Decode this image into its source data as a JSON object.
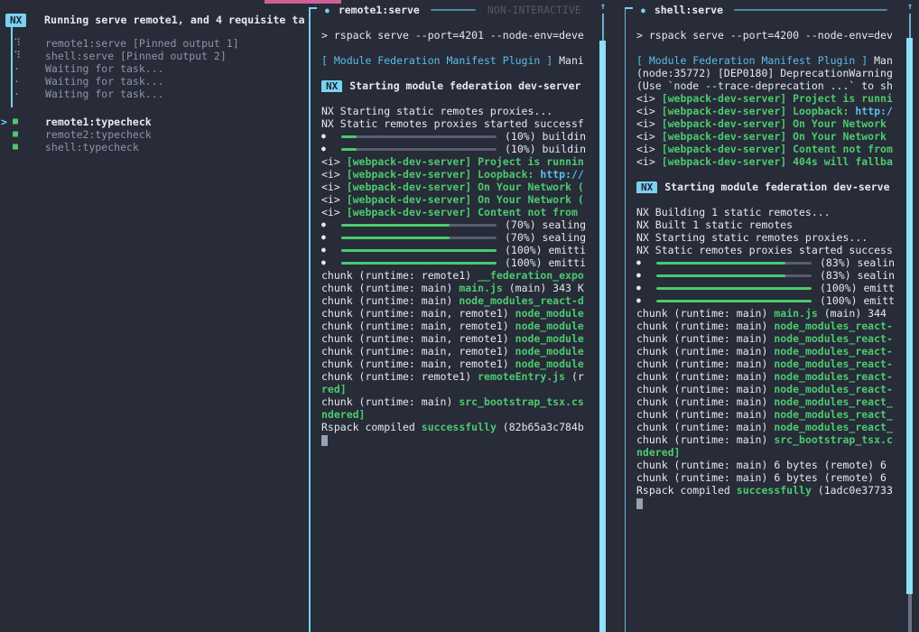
{
  "colors": {
    "background": "#282B38",
    "accent_cyan": "#79D2F0",
    "accent_pink": "#CE6096",
    "success_green": "#4ACB6E",
    "text_white": "#E7E9EF",
    "text_gray": "#8F95A8",
    "text_dim": "#525869",
    "link_cyan": "#58BEEA",
    "bar_track_gray": "#585E70",
    "scroll_thumb": "#8FE0F8",
    "badge_text": "#1E2230",
    "cursor_gray": "#99A0AF",
    "head_rule": "#4E87A6"
  },
  "icons": {
    "nx_badge": "NX",
    "running_dot": "●",
    "scroll_up_arrow": "↑",
    "spinner": "⠹",
    "waiting_dot": "·",
    "task_square": "■",
    "active_caret": ">",
    "progress_dot": "●"
  },
  "left_panel": {
    "badge": "NX",
    "title": "Running serve remote1, and 4 requisite ta",
    "rows": [
      {
        "icon": "spinner",
        "label": "remote1:serve [Pinned output 1]",
        "state": "pinned"
      },
      {
        "icon": "spinner",
        "label": "shell:serve [Pinned output 2]",
        "state": "pinned"
      },
      {
        "icon": "waiting_dot",
        "label": "Waiting for task...",
        "state": "waiting"
      },
      {
        "icon": "waiting_dot",
        "label": "Waiting for task...",
        "state": "waiting"
      },
      {
        "icon": "waiting_dot",
        "label": "Waiting for task...",
        "state": "waiting"
      },
      {
        "icon": "task_square",
        "label": "remote1:typecheck",
        "state": "success",
        "selected": true
      },
      {
        "icon": "task_square",
        "label": "remote2:typecheck",
        "state": "success"
      },
      {
        "icon": "task_square",
        "label": "shell:typecheck",
        "state": "success"
      }
    ]
  },
  "terminals": [
    {
      "title": "remote1:serve",
      "mode_label": "NON-INTERACTIVE",
      "lines": [
        {
          "t": "text",
          "segs": [
            [
              "> rspack serve --port=4201 --node-env=deve",
              "w"
            ]
          ]
        },
        {
          "t": "blank"
        },
        {
          "t": "text",
          "segs": [
            [
              "[ Module Federation Manifest Plugin ]",
              "cy"
            ],
            [
              " Mani",
              "w"
            ]
          ]
        },
        {
          "t": "blank"
        },
        {
          "t": "badge",
          "text": "Starting module federation dev-server"
        },
        {
          "t": "blank"
        },
        {
          "t": "text",
          "segs": [
            [
              "NX Starting static remotes proxies...",
              "w"
            ]
          ]
        },
        {
          "t": "text",
          "segs": [
            [
              "NX Static remotes proxies started successf",
              "w"
            ]
          ]
        },
        {
          "t": "bar",
          "pct": 10,
          "label": "(10%) buildin"
        },
        {
          "t": "bar",
          "pct": 10,
          "label": "(10%) buildin"
        },
        {
          "t": "text",
          "segs": [
            [
              "<i> ",
              "w"
            ],
            [
              "[webpack-dev-server] Project is runnin",
              "gn"
            ]
          ]
        },
        {
          "t": "text",
          "segs": [
            [
              "<i> ",
              "w"
            ],
            [
              "[webpack-dev-server] Loopback: ",
              "gn"
            ],
            [
              "http://",
              "cyb"
            ]
          ]
        },
        {
          "t": "text",
          "segs": [
            [
              "<i> ",
              "w"
            ],
            [
              "[webpack-dev-server] On Your Network (",
              "gn"
            ]
          ]
        },
        {
          "t": "text",
          "segs": [
            [
              "<i> ",
              "w"
            ],
            [
              "[webpack-dev-server] On Your Network (",
              "gn"
            ]
          ]
        },
        {
          "t": "text",
          "segs": [
            [
              "<i> ",
              "w"
            ],
            [
              "[webpack-dev-server] Content not from",
              "gn"
            ]
          ]
        },
        {
          "t": "bar",
          "pct": 70,
          "label": "(70%) sealing"
        },
        {
          "t": "bar",
          "pct": 70,
          "label": "(70%) sealing"
        },
        {
          "t": "bar",
          "pct": 100,
          "label": "(100%) emitti"
        },
        {
          "t": "bar",
          "pct": 100,
          "label": "(100%) emitti"
        },
        {
          "t": "text",
          "segs": [
            [
              "chunk (runtime: remote1) ",
              "w"
            ],
            [
              "__federation_expo",
              "gn"
            ]
          ]
        },
        {
          "t": "text",
          "segs": [
            [
              "chunk (runtime: main) ",
              "w"
            ],
            [
              "main.js ",
              "gn"
            ],
            [
              "(main) 343 K",
              "w"
            ]
          ]
        },
        {
          "t": "text",
          "segs": [
            [
              "chunk (runtime: main) ",
              "w"
            ],
            [
              "node_modules_react-d",
              "gn"
            ]
          ]
        },
        {
          "t": "text",
          "segs": [
            [
              "chunk (runtime: main, remote1) ",
              "w"
            ],
            [
              "node_module",
              "gn"
            ]
          ]
        },
        {
          "t": "text",
          "segs": [
            [
              "chunk (runtime: main, remote1) ",
              "w"
            ],
            [
              "node_module",
              "gn"
            ]
          ]
        },
        {
          "t": "text",
          "segs": [
            [
              "chunk (runtime: main, remote1) ",
              "w"
            ],
            [
              "node_module",
              "gn"
            ]
          ]
        },
        {
          "t": "text",
          "segs": [
            [
              "chunk (runtime: main, remote1) ",
              "w"
            ],
            [
              "node_module",
              "gn"
            ]
          ]
        },
        {
          "t": "text",
          "segs": [
            [
              "chunk (runtime: main, remote1) ",
              "w"
            ],
            [
              "node_module",
              "gn"
            ]
          ]
        },
        {
          "t": "text",
          "segs": [
            [
              "chunk (runtime: remote1) ",
              "w"
            ],
            [
              "remoteEntry.js ",
              "gn"
            ],
            [
              "(r",
              "w"
            ]
          ]
        },
        {
          "t": "text",
          "segs": [
            [
              "red]",
              "gn"
            ]
          ]
        },
        {
          "t": "text",
          "segs": [
            [
              "chunk (runtime: main) ",
              "w"
            ],
            [
              "src_bootstrap_tsx.cs",
              "gn"
            ]
          ]
        },
        {
          "t": "text",
          "segs": [
            [
              "ndered]",
              "gn"
            ]
          ]
        },
        {
          "t": "text",
          "segs": [
            [
              "Rspack compiled ",
              "w"
            ],
            [
              "successfully ",
              "gn"
            ],
            [
              "(82b65a3c784b",
              "w"
            ]
          ]
        },
        {
          "t": "cursor"
        }
      ]
    },
    {
      "title": "shell:serve",
      "mode_label": "",
      "lines": [
        {
          "t": "text",
          "segs": [
            [
              "> rspack serve --port=4200 --node-env=dev",
              "w"
            ]
          ]
        },
        {
          "t": "blank"
        },
        {
          "t": "text",
          "segs": [
            [
              "[ Module Federation Manifest Plugin ]",
              "cy"
            ],
            [
              " Man",
              "w"
            ]
          ]
        },
        {
          "t": "text",
          "segs": [
            [
              "(node:35772) [DEP0180] DeprecationWarning",
              "w"
            ]
          ]
        },
        {
          "t": "text",
          "segs": [
            [
              "(Use `node --trace-deprecation ...` to sh",
              "w"
            ]
          ]
        },
        {
          "t": "text",
          "segs": [
            [
              "<i> ",
              "w"
            ],
            [
              "[webpack-dev-server] Project is runni",
              "gn"
            ]
          ]
        },
        {
          "t": "text",
          "segs": [
            [
              "<i> ",
              "w"
            ],
            [
              "[webpack-dev-server] Loopback: ",
              "gn"
            ],
            [
              "http:/",
              "cyb"
            ]
          ]
        },
        {
          "t": "text",
          "segs": [
            [
              "<i> ",
              "w"
            ],
            [
              "[webpack-dev-server] On Your Network",
              "gn"
            ]
          ]
        },
        {
          "t": "text",
          "segs": [
            [
              "<i> ",
              "w"
            ],
            [
              "[webpack-dev-server] On Your Network",
              "gn"
            ]
          ]
        },
        {
          "t": "text",
          "segs": [
            [
              "<i> ",
              "w"
            ],
            [
              "[webpack-dev-server] Content not from",
              "gn"
            ]
          ]
        },
        {
          "t": "text",
          "segs": [
            [
              "<i> ",
              "w"
            ],
            [
              "[webpack-dev-server] 404s will fallba",
              "gn"
            ]
          ]
        },
        {
          "t": "blank"
        },
        {
          "t": "badge",
          "text": "Starting module federation dev-serve"
        },
        {
          "t": "blank"
        },
        {
          "t": "text",
          "segs": [
            [
              "NX Building 1 static remotes...",
              "w"
            ]
          ]
        },
        {
          "t": "text",
          "segs": [
            [
              "NX Built 1 static remotes",
              "w"
            ]
          ]
        },
        {
          "t": "text",
          "segs": [
            [
              "NX Starting static remotes proxies...",
              "w"
            ]
          ]
        },
        {
          "t": "text",
          "segs": [
            [
              "NX Static remotes proxies started success",
              "w"
            ]
          ]
        },
        {
          "t": "bar",
          "pct": 83,
          "label": "(83%) sealin"
        },
        {
          "t": "bar",
          "pct": 83,
          "label": "(83%) sealin"
        },
        {
          "t": "bar",
          "pct": 100,
          "label": "(100%) emitt"
        },
        {
          "t": "bar",
          "pct": 100,
          "label": "(100%) emitt"
        },
        {
          "t": "text",
          "segs": [
            [
              "chunk (runtime: main) ",
              "w"
            ],
            [
              "main.js ",
              "gn"
            ],
            [
              "(main) 344",
              "w"
            ]
          ]
        },
        {
          "t": "text",
          "segs": [
            [
              "chunk (runtime: main) ",
              "w"
            ],
            [
              "node_modules_react-",
              "gn"
            ]
          ]
        },
        {
          "t": "text",
          "segs": [
            [
              "chunk (runtime: main) ",
              "w"
            ],
            [
              "node_modules_react-",
              "gn"
            ]
          ]
        },
        {
          "t": "text",
          "segs": [
            [
              "chunk (runtime: main) ",
              "w"
            ],
            [
              "node_modules_react-",
              "gn"
            ]
          ]
        },
        {
          "t": "text",
          "segs": [
            [
              "chunk (runtime: main) ",
              "w"
            ],
            [
              "node_modules_react-",
              "gn"
            ]
          ]
        },
        {
          "t": "text",
          "segs": [
            [
              "chunk (runtime: main) ",
              "w"
            ],
            [
              "node_modules_react-",
              "gn"
            ]
          ]
        },
        {
          "t": "text",
          "segs": [
            [
              "chunk (runtime: main) ",
              "w"
            ],
            [
              "node_modules_react-",
              "gn"
            ]
          ]
        },
        {
          "t": "text",
          "segs": [
            [
              "chunk (runtime: main) ",
              "w"
            ],
            [
              "node_modules_react_",
              "gn"
            ]
          ]
        },
        {
          "t": "text",
          "segs": [
            [
              "chunk (runtime: main) ",
              "w"
            ],
            [
              "node_modules_react_",
              "gn"
            ]
          ]
        },
        {
          "t": "text",
          "segs": [
            [
              "chunk (runtime: main) ",
              "w"
            ],
            [
              "node_modules_react_",
              "gn"
            ]
          ]
        },
        {
          "t": "text",
          "segs": [
            [
              "chunk (runtime: main) ",
              "w"
            ],
            [
              "src_bootstrap_tsx.c",
              "gn"
            ]
          ]
        },
        {
          "t": "text",
          "segs": [
            [
              "ndered]",
              "gn"
            ]
          ]
        },
        {
          "t": "text",
          "segs": [
            [
              "chunk (runtime: main) 6 bytes (remote) 6",
              "w"
            ]
          ]
        },
        {
          "t": "text",
          "segs": [
            [
              "chunk (runtime: main) 6 bytes (remote) 6",
              "w"
            ]
          ]
        },
        {
          "t": "text",
          "segs": [
            [
              "Rspack compiled ",
              "w"
            ],
            [
              "successfully ",
              "gn"
            ],
            [
              "(1adc0e37733",
              "w"
            ]
          ]
        },
        {
          "t": "cursor"
        }
      ]
    }
  ]
}
